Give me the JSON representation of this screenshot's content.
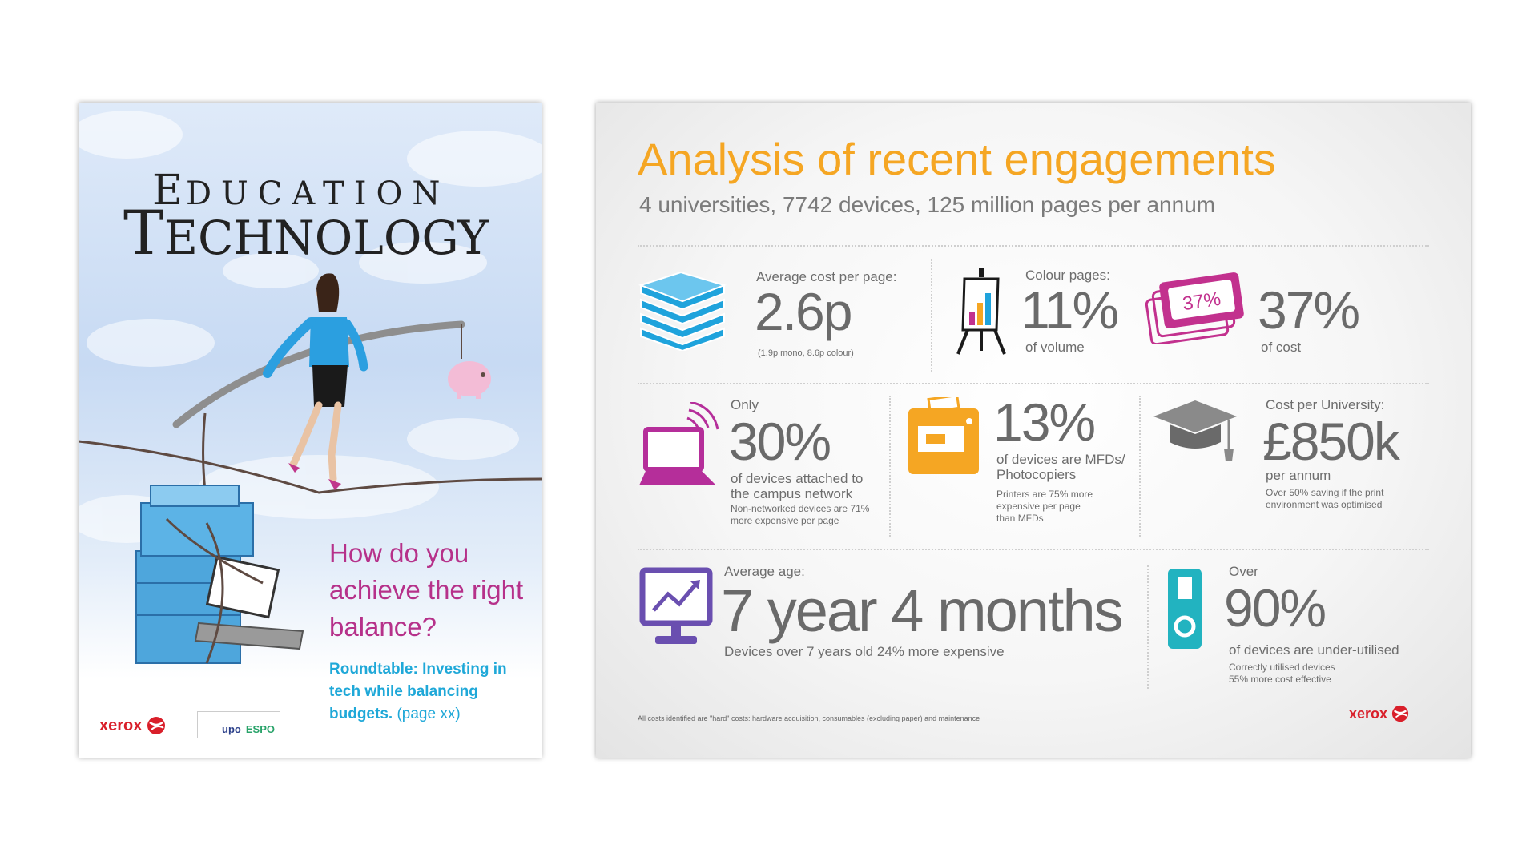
{
  "cover": {
    "masthead_top_first": "E",
    "masthead_top_rest": "DUCATION",
    "masthead_bottom_first": "T",
    "masthead_bottom_rest": "ECHNOLOGY",
    "headline": "How do you achieve the right balance?",
    "sub_bold": "Roundtable: Investing in tech while balancing budgets.",
    "sub_page": "(page xx)",
    "brand": "xerox",
    "partner_1": "upo",
    "partner_2": "ESPO",
    "colors": {
      "headline": "#b6318a",
      "sub": "#1fa8d8",
      "brand": "#d91f2a"
    }
  },
  "infographic": {
    "title": "Analysis of recent engagements",
    "subtitle": "4 universities, 7742 devices, 125 million pages per annum",
    "cost_per_page": {
      "icon": "paper-stack-icon",
      "label": "Average cost per page:",
      "value": "2.6p",
      "note": "(1.9p mono, 8.6p colour)"
    },
    "colour_pages": {
      "icon": "easel-chart-icon",
      "label": "Colour pages:",
      "value": "11%",
      "caption": "of volume"
    },
    "colour_cost": {
      "icon": "ticket-icon",
      "ticket_text": "37%",
      "value": "37%",
      "caption": "of cost"
    },
    "network": {
      "icon": "laptop-wifi-icon",
      "label": "Only",
      "value": "30%",
      "caption": "of devices attached to the campus network",
      "note": "Non-networked devices are 71% more expensive per page"
    },
    "mfds": {
      "icon": "printer-icon",
      "value": "13%",
      "caption": "of devices are MFDs/ Photocopiers",
      "note": "Printers are 75% more expensive per page than MFDs"
    },
    "university_cost": {
      "icon": "graduation-cap-icon",
      "label": "Cost per University:",
      "value": "£850k",
      "caption": "per annum",
      "note": "Over 50% saving if the print environment was optimised"
    },
    "age": {
      "icon": "monitor-chart-icon",
      "label": "Average age:",
      "value": "7 year 4 months",
      "caption": "Devices over 7 years old 24% more expensive"
    },
    "utilisation": {
      "icon": "power-switch-icon",
      "label": "Over",
      "value": "90%",
      "caption": "of devices are under-utilised",
      "note": "Correctly utilised devices 55% more cost effective"
    },
    "footnote": "All costs identified are \"hard\" costs: hardware acquisition, consumables (excluding paper) and maintenance",
    "brand": "xerox",
    "colors": {
      "title": "#f5a623",
      "text": "#6a6a6a",
      "paper": "#1fa3dc",
      "ticket": "#c2318e",
      "laptop": "#b52e9a",
      "printer": "#f5a623",
      "cap": "#8a8a8a",
      "monitor": "#6a4fb0",
      "switch": "#22b3c0"
    }
  }
}
